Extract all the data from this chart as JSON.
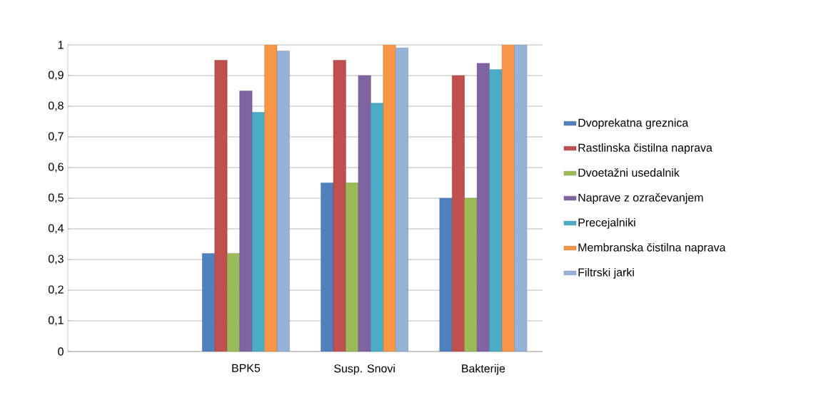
{
  "chart_data": {
    "type": "bar",
    "categories": [
      null,
      "BPK5",
      "Susp. Snovi",
      "Bakterije"
    ],
    "series": [
      {
        "name": "Dvoprekatna greznica",
        "color": "#4f81bd",
        "values": [
          null,
          0.32,
          0.55,
          0.5
        ]
      },
      {
        "name": "Rastlinska čistilna naprava",
        "color": "#c0504d",
        "values": [
          null,
          0.95,
          0.95,
          0.9
        ]
      },
      {
        "name": "Dvoetažni usedalnik",
        "color": "#9bbb59",
        "values": [
          null,
          0.32,
          0.55,
          0.5
        ]
      },
      {
        "name": "Naprave z ozračevanjem",
        "color": "#8064a2",
        "values": [
          null,
          0.85,
          0.9,
          0.94
        ]
      },
      {
        "name": "Precejalniki",
        "color": "#4bacc6",
        "values": [
          null,
          0.78,
          0.81,
          0.92
        ]
      },
      {
        "name": "Membranska čistilna naprava",
        "color": "#f79646",
        "values": [
          null,
          1.0,
          1.0,
          1.0
        ]
      },
      {
        "name": "Filtrski jarki",
        "color": "#95b3d7",
        "values": [
          null,
          0.98,
          0.99,
          1.0
        ]
      }
    ],
    "ylim": [
      0,
      1
    ],
    "yticks": [
      0,
      {
        "value": 0.1,
        "label": "0,1"
      },
      {
        "value": 0.2,
        "label": "0,2"
      },
      {
        "value": 0.3,
        "label": "0,3"
      },
      {
        "value": 0.4,
        "label": "0,4"
      },
      {
        "value": 0.5,
        "label": "0,5"
      },
      {
        "value": 0.6,
        "label": "0,6"
      },
      {
        "value": 0.7,
        "label": "0,7"
      },
      {
        "value": 0.8,
        "label": "0,8"
      },
      {
        "value": 0.9,
        "label": "0,9"
      },
      1
    ],
    "grid": "y",
    "legend": "right"
  }
}
